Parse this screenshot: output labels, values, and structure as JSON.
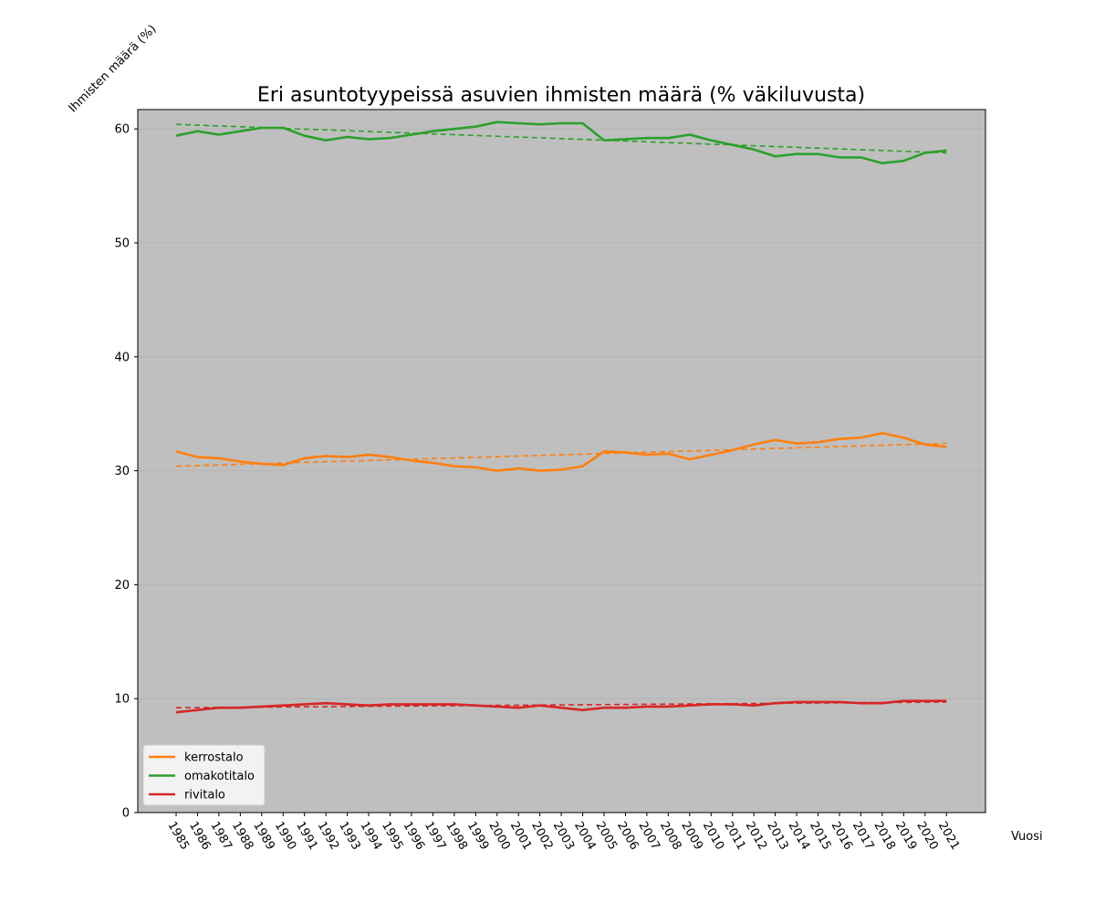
{
  "chart_data": {
    "type": "line",
    "title": "Eri asuntotyypeissä asuvien ihmisten määrä (% väkiluvusta)",
    "xlabel": "Vuosi",
    "ylabel": "Ihmisten määrä (%)",
    "ylim": [
      0,
      61.7
    ],
    "yticks": [
      0,
      10,
      20,
      30,
      40,
      50,
      60
    ],
    "grid": true,
    "legend_position": "lower-left",
    "background": "#bfbfbf",
    "x": [
      "1985",
      "1986",
      "1987",
      "1988",
      "1989",
      "1990",
      "1991",
      "1992",
      "1993",
      "1994",
      "1995",
      "1996",
      "1997",
      "1998",
      "1999",
      "2000",
      "2001",
      "2002",
      "2003",
      "2004",
      "2005",
      "2006",
      "2007",
      "2008",
      "2009",
      "2010",
      "2011",
      "2012",
      "2013",
      "2014",
      "2015",
      "2016",
      "2017",
      "2018",
      "2019",
      "2020",
      "2021"
    ],
    "series": [
      {
        "name": "kerrostalo",
        "color": "#ff7f0e",
        "values": [
          31.7,
          31.2,
          31.1,
          30.8,
          30.6,
          30.5,
          31.1,
          31.3,
          31.2,
          31.4,
          31.2,
          30.9,
          30.7,
          30.4,
          30.3,
          30.0,
          30.2,
          30.0,
          30.1,
          30.4,
          31.7,
          31.6,
          31.4,
          31.5,
          31.0,
          31.4,
          31.8,
          32.3,
          32.7,
          32.4,
          32.5,
          32.8,
          32.9,
          33.3,
          32.9,
          32.3,
          32.1
        ],
        "trend": [
          30.4,
          32.4
        ]
      },
      {
        "name": "omakotitalo",
        "color": "#2ca02c",
        "values": [
          59.4,
          59.8,
          59.5,
          59.8,
          60.1,
          60.1,
          59.4,
          59.0,
          59.3,
          59.1,
          59.2,
          59.5,
          59.8,
          60.0,
          60.2,
          60.6,
          60.5,
          60.4,
          60.5,
          60.5,
          59.0,
          59.1,
          59.2,
          59.2,
          59.5,
          59.0,
          58.6,
          58.2,
          57.6,
          57.8,
          57.8,
          57.5,
          57.5,
          57.0,
          57.2,
          57.9,
          58.1
        ],
        "trend": [
          60.4,
          57.9
        ]
      },
      {
        "name": "rivitalo",
        "color": "#d62728",
        "values": [
          8.8,
          9.0,
          9.2,
          9.2,
          9.3,
          9.4,
          9.5,
          9.6,
          9.5,
          9.4,
          9.5,
          9.5,
          9.5,
          9.5,
          9.4,
          9.3,
          9.2,
          9.4,
          9.2,
          9.0,
          9.2,
          9.2,
          9.3,
          9.3,
          9.4,
          9.5,
          9.5,
          9.4,
          9.6,
          9.7,
          9.7,
          9.7,
          9.6,
          9.6,
          9.8,
          9.8,
          9.8
        ],
        "trend": [
          9.2,
          9.7
        ]
      }
    ]
  }
}
